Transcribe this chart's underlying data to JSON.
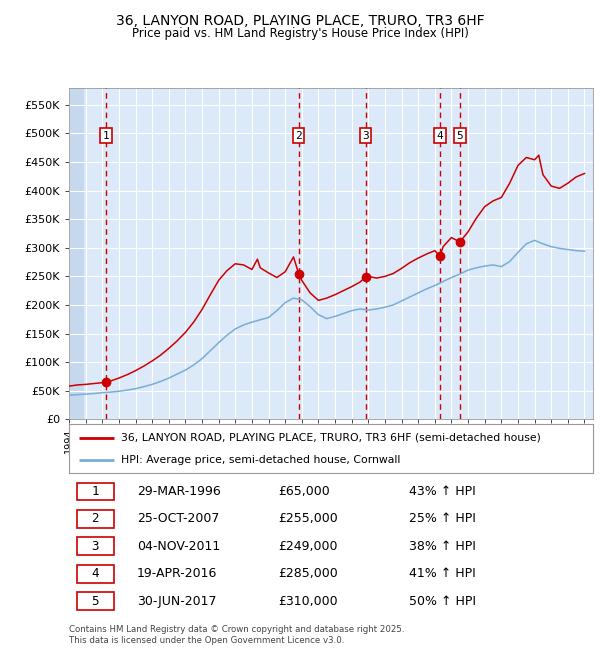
{
  "title": "36, LANYON ROAD, PLAYING PLACE, TRURO, TR3 6HF",
  "subtitle": "Price paid vs. HM Land Registry's House Price Index (HPI)",
  "xlim_start": 1994.0,
  "xlim_end": 2025.5,
  "ylim_min": 0,
  "ylim_max": 580000,
  "yticks": [
    0,
    50000,
    100000,
    150000,
    200000,
    250000,
    300000,
    350000,
    400000,
    450000,
    500000,
    550000
  ],
  "ytick_labels": [
    "£0",
    "£50K",
    "£100K",
    "£150K",
    "£200K",
    "£250K",
    "£300K",
    "£350K",
    "£400K",
    "£450K",
    "£500K",
    "£550K"
  ],
  "background_color": "#dce9f8",
  "hatch_color": "#c5d8ee",
  "grid_color": "#ffffff",
  "line_color_red": "#cc0000",
  "line_color_blue": "#7aadd4",
  "transaction_dates": [
    1996.24,
    2007.81,
    2011.84,
    2016.3,
    2017.5
  ],
  "transaction_prices": [
    65000,
    255000,
    249000,
    285000,
    310000
  ],
  "transaction_labels": [
    "1",
    "2",
    "3",
    "4",
    "5"
  ],
  "legend_label_red": "36, LANYON ROAD, PLAYING PLACE, TRURO, TR3 6HF (semi-detached house)",
  "legend_label_blue": "HPI: Average price, semi-detached house, Cornwall",
  "table_data": [
    [
      "1",
      "29-MAR-1996",
      "£65,000",
      "43% ↑ HPI"
    ],
    [
      "2",
      "25-OCT-2007",
      "£255,000",
      "25% ↑ HPI"
    ],
    [
      "3",
      "04-NOV-2011",
      "£249,000",
      "38% ↑ HPI"
    ],
    [
      "4",
      "19-APR-2016",
      "£285,000",
      "41% ↑ HPI"
    ],
    [
      "5",
      "30-JUN-2017",
      "£310,000",
      "50% ↑ HPI"
    ]
  ],
  "footer": "Contains HM Land Registry data © Crown copyright and database right 2025.\nThis data is licensed under the Open Government Licence v3.0.",
  "hpi_years": [
    1994.0,
    1994.5,
    1995.0,
    1995.5,
    1996.0,
    1996.5,
    1997.0,
    1997.5,
    1998.0,
    1998.5,
    1999.0,
    1999.5,
    2000.0,
    2000.5,
    2001.0,
    2001.5,
    2002.0,
    2002.5,
    2003.0,
    2003.5,
    2004.0,
    2004.5,
    2005.0,
    2005.5,
    2006.0,
    2006.5,
    2007.0,
    2007.5,
    2008.0,
    2008.5,
    2009.0,
    2009.5,
    2010.0,
    2010.5,
    2011.0,
    2011.5,
    2012.0,
    2012.5,
    2013.0,
    2013.5,
    2014.0,
    2014.5,
    2015.0,
    2015.5,
    2016.0,
    2016.5,
    2017.0,
    2017.5,
    2018.0,
    2018.5,
    2019.0,
    2019.5,
    2020.0,
    2020.5,
    2021.0,
    2021.5,
    2022.0,
    2022.5,
    2023.0,
    2023.5,
    2024.0,
    2024.5,
    2025.0
  ],
  "hpi_values": [
    42000,
    43000,
    44000,
    45000,
    46500,
    47500,
    49000,
    51000,
    53500,
    57000,
    61000,
    66000,
    72000,
    79000,
    86000,
    95000,
    106000,
    120000,
    134000,
    147000,
    158000,
    165000,
    170000,
    174000,
    178000,
    190000,
    204000,
    212000,
    209000,
    197000,
    183000,
    176000,
    180000,
    185000,
    190000,
    193000,
    191000,
    193000,
    196000,
    200000,
    207000,
    214000,
    221000,
    228000,
    234000,
    241000,
    248000,
    254000,
    261000,
    265000,
    268000,
    270000,
    267000,
    276000,
    292000,
    307000,
    313000,
    307000,
    302000,
    299000,
    297000,
    295000,
    294000
  ],
  "red_years": [
    1994.0,
    1994.5,
    1995.0,
    1995.5,
    1996.0,
    1996.24,
    1996.5,
    1997.0,
    1997.5,
    1998.0,
    1998.5,
    1999.0,
    1999.5,
    2000.0,
    2000.5,
    2001.0,
    2001.5,
    2002.0,
    2002.5,
    2003.0,
    2003.5,
    2004.0,
    2004.5,
    2005.0,
    2005.33,
    2005.5,
    2006.0,
    2006.5,
    2007.0,
    2007.5,
    2007.81,
    2008.0,
    2008.5,
    2009.0,
    2009.5,
    2010.0,
    2010.5,
    2011.0,
    2011.5,
    2011.84,
    2012.0,
    2012.5,
    2013.0,
    2013.5,
    2014.0,
    2014.5,
    2015.0,
    2015.5,
    2016.0,
    2016.3,
    2016.5,
    2017.0,
    2017.5,
    2018.0,
    2018.5,
    2019.0,
    2019.5,
    2020.0,
    2020.5,
    2021.0,
    2021.5,
    2022.0,
    2022.25,
    2022.5,
    2023.0,
    2023.5,
    2024.0,
    2024.5,
    2025.0
  ],
  "red_values": [
    58000,
    60000,
    61000,
    62500,
    64000,
    65000,
    67000,
    72000,
    78000,
    85000,
    93000,
    102000,
    112000,
    124000,
    137000,
    152000,
    170000,
    192000,
    218000,
    243000,
    260000,
    272000,
    270000,
    262000,
    280000,
    265000,
    256000,
    248000,
    258000,
    284000,
    255000,
    243000,
    221000,
    208000,
    212000,
    218000,
    225000,
    232000,
    240000,
    249000,
    250000,
    247000,
    250000,
    255000,
    264000,
    274000,
    282000,
    289000,
    295000,
    285000,
    302000,
    318000,
    310000,
    328000,
    352000,
    372000,
    382000,
    388000,
    413000,
    444000,
    458000,
    454000,
    462000,
    428000,
    408000,
    404000,
    413000,
    424000,
    430000
  ]
}
